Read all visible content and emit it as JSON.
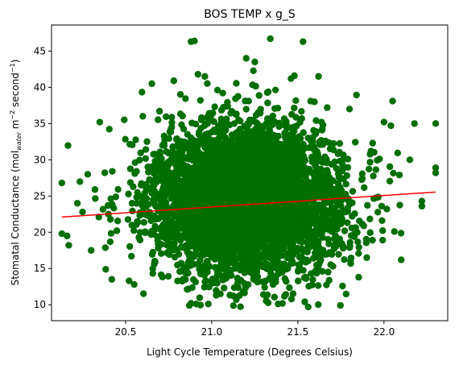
{
  "chart_data": {
    "type": "scatter",
    "title": "BOS TEMP x g_S",
    "xlabel": "Light Cycle Temperature (Degrees Celsius)",
    "ylabel_parts": [
      "Stomatal Conductance (mol",
      "water",
      " m",
      "−2",
      " second",
      "−1",
      ")"
    ],
    "xlim": [
      20.07,
      22.37
    ],
    "ylim": [
      7.8,
      48.6
    ],
    "xticks": [
      20.5,
      21.0,
      21.5,
      22.0
    ],
    "xtick_labels": [
      "20.5",
      "21.0",
      "21.5",
      "22.0"
    ],
    "yticks": [
      10,
      15,
      20,
      25,
      30,
      35,
      40,
      45
    ],
    "ytick_labels": [
      "10",
      "15",
      "20",
      "25",
      "30",
      "35",
      "40",
      "45"
    ],
    "grid": false,
    "point_color": "#006e00",
    "trend_color": "#ff0000",
    "cloud": {
      "count": 5000,
      "x_mean": 21.2,
      "x_sd": 0.27,
      "y_mean": 24.5,
      "y_sd": 5.1
    },
    "outliers": [
      {
        "x": 20.13,
        "y": 26.8
      },
      {
        "x": 20.13,
        "y": 19.8
      },
      {
        "x": 20.16,
        "y": 19.5
      },
      {
        "x": 20.17,
        "y": 18.2
      },
      {
        "x": 20.35,
        "y": 35.2
      },
      {
        "x": 20.3,
        "y": 17.5
      },
      {
        "x": 20.4,
        "y": 22.5
      },
      {
        "x": 20.42,
        "y": 13.5
      },
      {
        "x": 20.52,
        "y": 13.3
      },
      {
        "x": 20.88,
        "y": 46.3
      },
      {
        "x": 20.9,
        "y": 46.4
      },
      {
        "x": 20.78,
        "y": 40.9
      },
      {
        "x": 20.92,
        "y": 41.8
      },
      {
        "x": 20.96,
        "y": 41.5
      },
      {
        "x": 21.34,
        "y": 46.7
      },
      {
        "x": 21.53,
        "y": 46.3
      },
      {
        "x": 21.2,
        "y": 44.0
      },
      {
        "x": 21.25,
        "y": 43.5
      },
      {
        "x": 21.48,
        "y": 41.6
      },
      {
        "x": 21.46,
        "y": 41.2
      },
      {
        "x": 21.62,
        "y": 41.5
      },
      {
        "x": 20.88,
        "y": 10.2
      },
      {
        "x": 20.87,
        "y": 9.9
      },
      {
        "x": 20.91,
        "y": 10.1
      },
      {
        "x": 20.98,
        "y": 10.1
      },
      {
        "x": 21.54,
        "y": 10.4
      },
      {
        "x": 21.56,
        "y": 9.7
      },
      {
        "x": 21.05,
        "y": 11.5
      },
      {
        "x": 21.3,
        "y": 11.4
      },
      {
        "x": 22.3,
        "y": 35.0
      },
      {
        "x": 22.3,
        "y": 28.9
      },
      {
        "x": 22.3,
        "y": 28.2
      },
      {
        "x": 22.22,
        "y": 24.3
      },
      {
        "x": 22.22,
        "y": 23.6
      },
      {
        "x": 22.1,
        "y": 16.2
      },
      {
        "x": 22.04,
        "y": 34.7
      },
      {
        "x": 22.0,
        "y": 35.2
      },
      {
        "x": 22.05,
        "y": 38.1
      },
      {
        "x": 22.09,
        "y": 27.9
      },
      {
        "x": 22.06,
        "y": 20.1
      },
      {
        "x": 22.15,
        "y": 30.0
      },
      {
        "x": 21.8,
        "y": 37.0
      },
      {
        "x": 21.9,
        "y": 16.5
      },
      {
        "x": 20.6,
        "y": 36.0
      },
      {
        "x": 20.55,
        "y": 12.8
      },
      {
        "x": 20.22,
        "y": 24.0
      },
      {
        "x": 20.25,
        "y": 22.8
      },
      {
        "x": 20.28,
        "y": 28.0
      }
    ],
    "trend": {
      "x": [
        20.13,
        22.3
      ],
      "y": [
        22.1,
        25.55
      ]
    }
  }
}
